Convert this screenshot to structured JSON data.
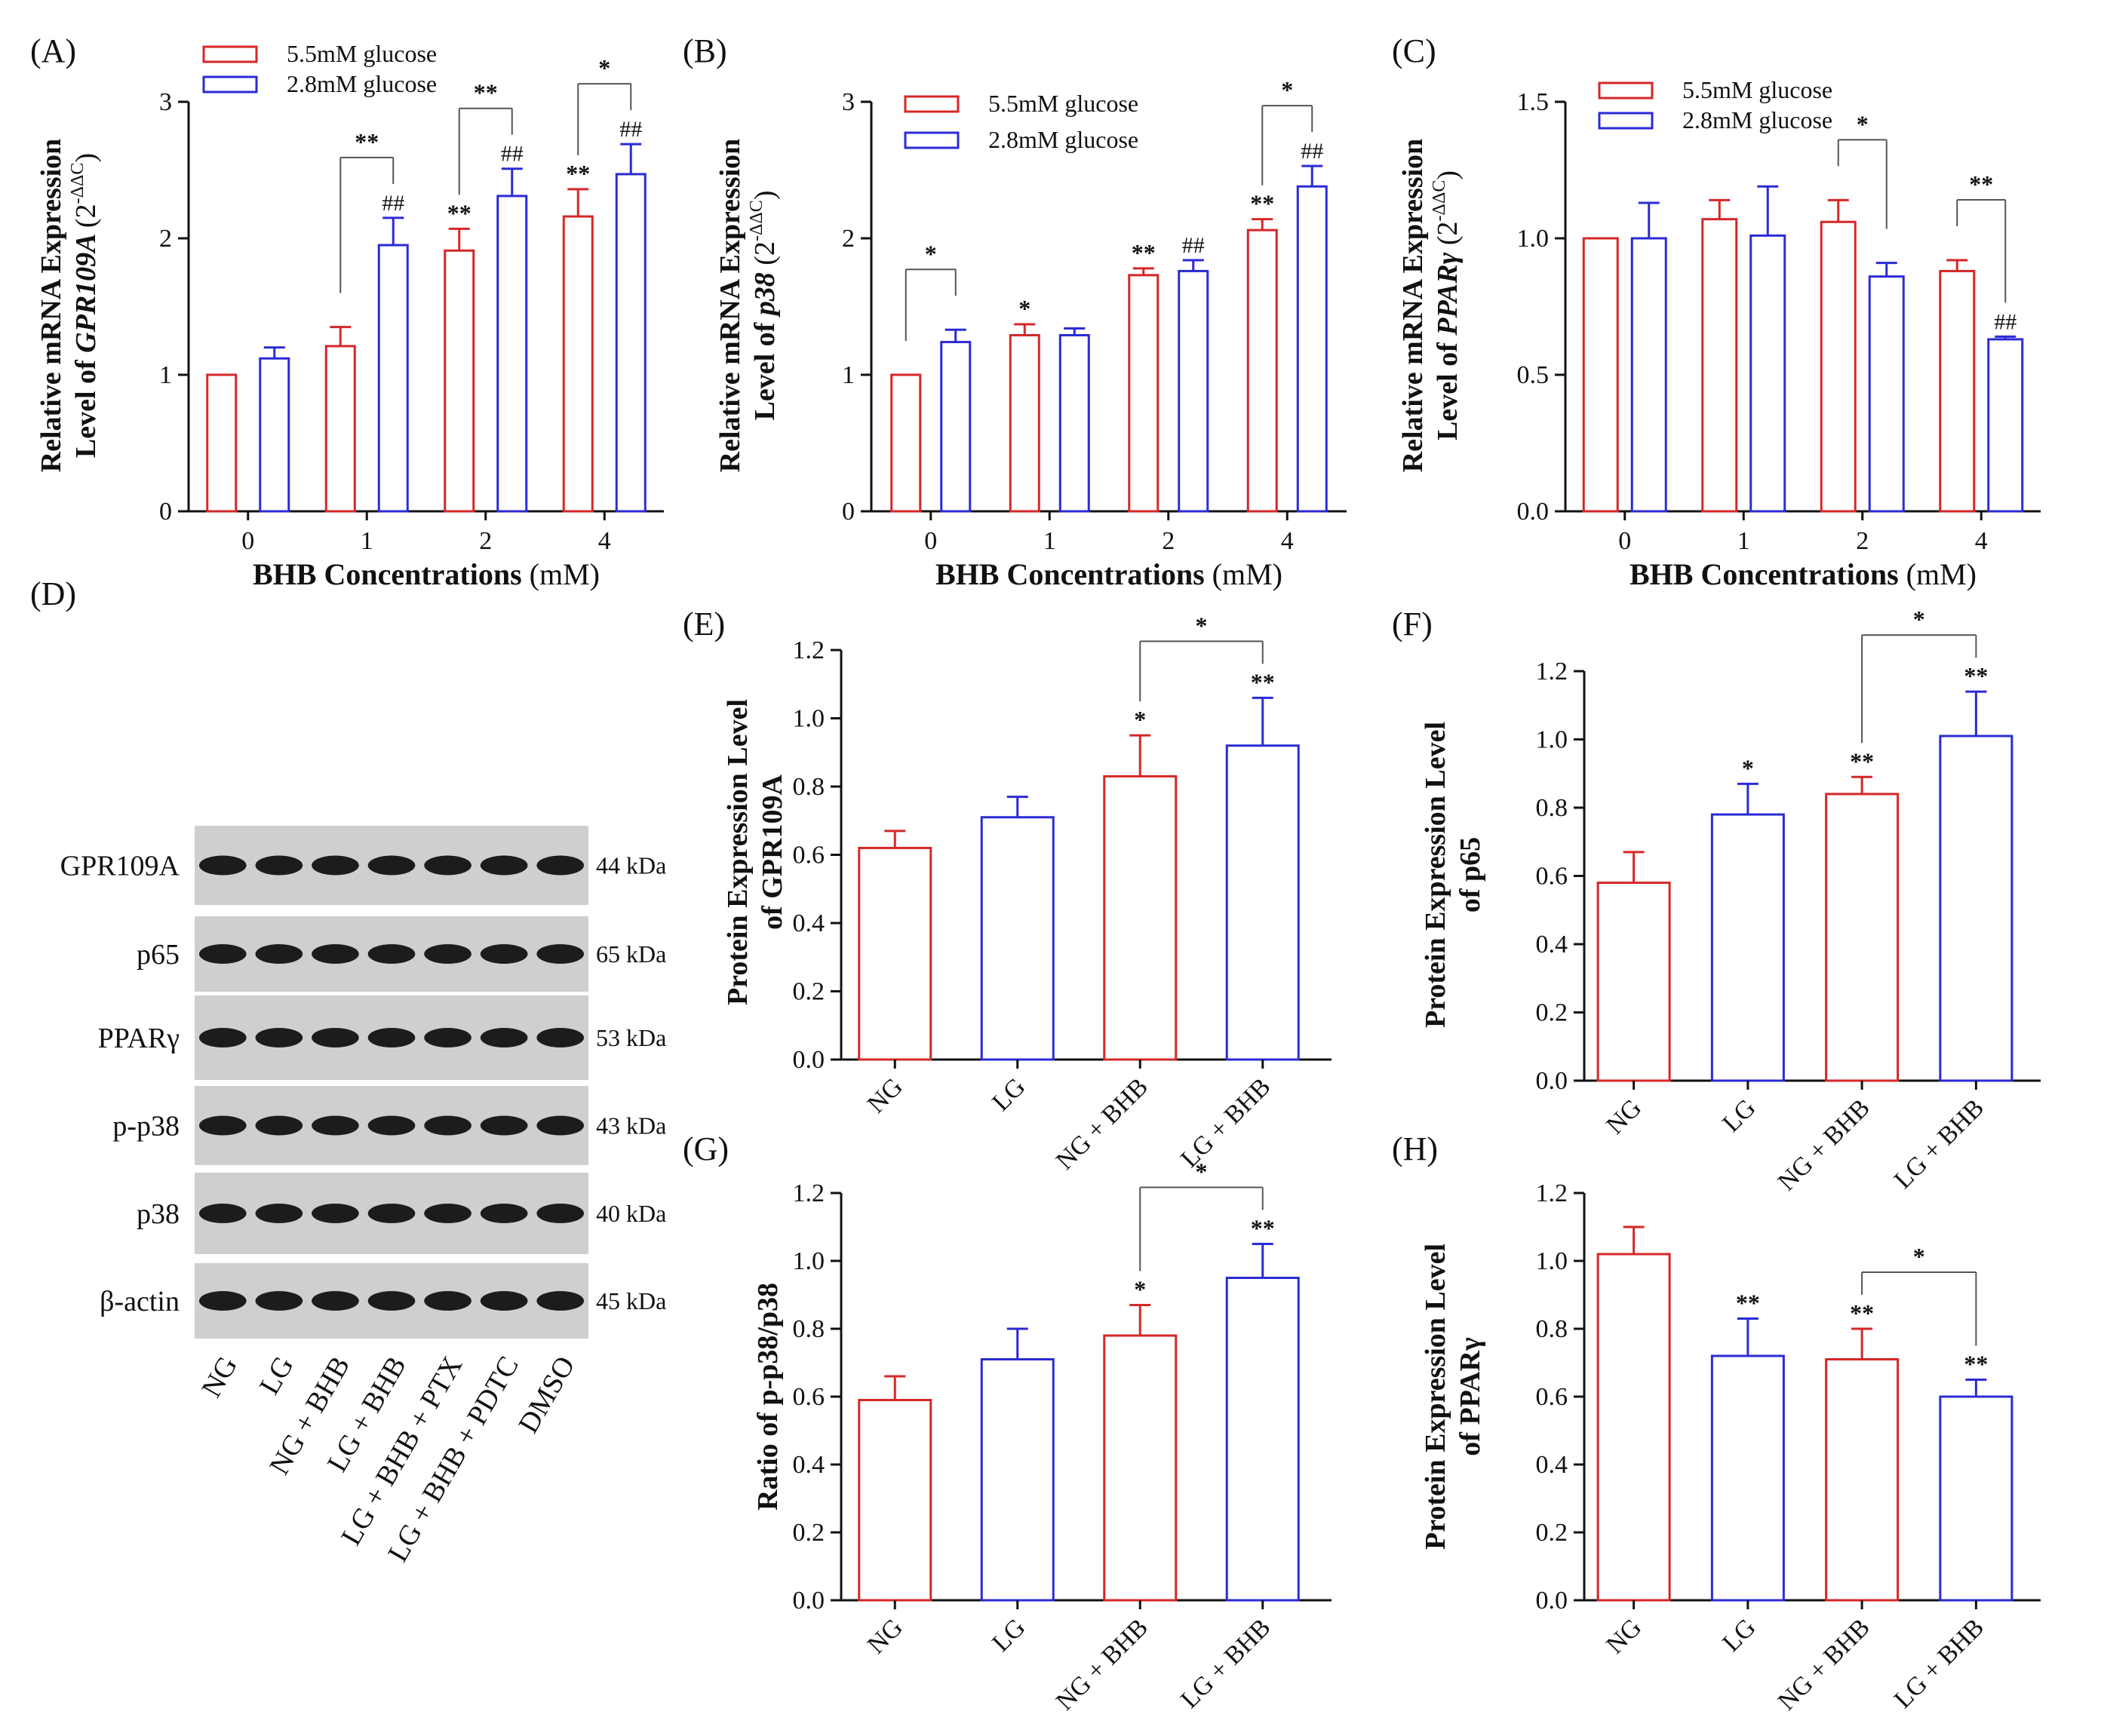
{
  "colors": {
    "red": "#d62728",
    "blue": "#2b2bd6",
    "axis": "#111111"
  },
  "chart_data": [
    {
      "id": "A",
      "panel_label": "(A)",
      "type": "bar",
      "ylabel_line1": "Relative mRNA Expression",
      "ylabel_line2_pre": "Level of ",
      "ylabel_gene": "GPR109A",
      "ylabel_unit_pre": "(2",
      "ylabel_unit_sup": "-ΔΔC",
      "ylabel_unit_post": ")",
      "xlabel_bold": "BHB Concentrations",
      "xlabel_rest": " (mM)",
      "categories": [
        "0",
        "1",
        "2",
        "4"
      ],
      "ylim": [
        0,
        3
      ],
      "yticks": [
        "0",
        "1",
        "2",
        "3"
      ],
      "legend": "top-left",
      "series": [
        {
          "name": "5.5mM glucose",
          "color_key": "red",
          "values": [
            1.0,
            1.21,
            1.91,
            2.16
          ],
          "err": [
            0,
            0.14,
            0.16,
            0.2
          ],
          "marks": [
            "",
            "",
            "**",
            "**"
          ]
        },
        {
          "name": "2.8mM glucose",
          "color_key": "blue",
          "values": [
            1.12,
            1.95,
            2.31,
            2.47
          ],
          "err": [
            0.08,
            0.2,
            0.2,
            0.22
          ],
          "marks": [
            "",
            "##",
            "##",
            "##"
          ]
        }
      ],
      "brackets": [
        {
          "cat": 1,
          "label": "**"
        },
        {
          "cat": 2,
          "label": "**"
        },
        {
          "cat": 3,
          "label": "*"
        }
      ]
    },
    {
      "id": "B",
      "panel_label": "(B)",
      "type": "bar",
      "ylabel_line1": "Relative mRNA Expression",
      "ylabel_line2_pre": "Level of ",
      "ylabel_gene": "p38",
      "ylabel_unit_pre": "(2",
      "ylabel_unit_sup": "-ΔΔC",
      "ylabel_unit_post": ")",
      "xlabel_bold": "BHB Concentrations",
      "xlabel_rest": " (mM)",
      "categories": [
        "0",
        "1",
        "2",
        "4"
      ],
      "ylim": [
        0,
        3
      ],
      "yticks": [
        "0",
        "1",
        "2",
        "3"
      ],
      "legend": "top-center",
      "series": [
        {
          "name": "5.5mM glucose",
          "color_key": "red",
          "values": [
            1.0,
            1.29,
            1.73,
            2.06
          ],
          "err": [
            0,
            0.08,
            0.05,
            0.08
          ],
          "marks": [
            "",
            "*",
            "**",
            "**"
          ]
        },
        {
          "name": "2.8mM glucose",
          "color_key": "blue",
          "values": [
            1.24,
            1.29,
            1.76,
            2.38
          ],
          "err": [
            0.09,
            0.05,
            0.08,
            0.15
          ],
          "marks": [
            "",
            "",
            "##",
            "##"
          ]
        }
      ],
      "brackets": [
        {
          "cat": 0,
          "label": "*"
        },
        {
          "cat": 3,
          "label": "*"
        }
      ]
    },
    {
      "id": "C",
      "panel_label": "(C)",
      "type": "bar",
      "ylabel_line1": "Relative mRNA Expression",
      "ylabel_line2_pre": "Level of ",
      "ylabel_gene": "PPARγ",
      "ylabel_unit_pre": "(2",
      "ylabel_unit_sup": "-ΔΔC",
      "ylabel_unit_post": ")",
      "xlabel_bold": "BHB Concentrations",
      "xlabel_rest": " (mM)",
      "categories": [
        "0",
        "1",
        "2",
        "4"
      ],
      "ylim": [
        0,
        1.5
      ],
      "yticks": [
        "0.0",
        "0.5",
        "1.0",
        "1.5"
      ],
      "legend": "top-center",
      "series": [
        {
          "name": "5.5mM glucose",
          "color_key": "red",
          "values": [
            1.0,
            1.07,
            1.06,
            0.88
          ],
          "err": [
            0,
            0.07,
            0.08,
            0.04
          ],
          "marks": [
            "",
            "",
            "",
            ""
          ]
        },
        {
          "name": "2.8mM glucose",
          "color_key": "blue",
          "values": [
            1.0,
            1.01,
            0.86,
            0.63
          ],
          "err": [
            0.13,
            0.18,
            0.05,
            0.01
          ],
          "marks": [
            "",
            "",
            "",
            "##"
          ]
        }
      ],
      "brackets": [
        {
          "cat": 2,
          "label": "*"
        },
        {
          "cat": 3,
          "label": "**"
        }
      ]
    },
    {
      "id": "E",
      "panel_label": "(E)",
      "type": "bar",
      "ylabel_line1": "Protein Expression Level",
      "ylabel_line2": "of GPR109A",
      "categories": [
        "NG",
        "LG",
        "NG + BHB",
        "LG + BHB"
      ],
      "ylim": [
        0,
        1.2
      ],
      "yticks": [
        "0.0",
        "0.2",
        "0.4",
        "0.6",
        "0.8",
        "1.0",
        "1.2"
      ],
      "values": [
        0.62,
        0.71,
        0.83,
        0.92
      ],
      "err": [
        0.05,
        0.06,
        0.12,
        0.14
      ],
      "bar_colors": [
        "red",
        "blue",
        "red",
        "blue"
      ],
      "marks": [
        "",
        "",
        "*",
        "**"
      ],
      "bracket": {
        "from": 2,
        "to": 3,
        "label": "*"
      }
    },
    {
      "id": "F",
      "panel_label": "(F)",
      "type": "bar",
      "ylabel_line1": "Protein Expression Level",
      "ylabel_line2": "of p65",
      "categories": [
        "NG",
        "LG",
        "NG + BHB",
        "LG + BHB"
      ],
      "ylim": [
        0,
        1.2
      ],
      "yticks": [
        "0.0",
        "0.2",
        "0.4",
        "0.6",
        "0.8",
        "1.0",
        "1.2"
      ],
      "values": [
        0.58,
        0.78,
        0.84,
        1.01
      ],
      "err": [
        0.09,
        0.09,
        0.05,
        0.13
      ],
      "bar_colors": [
        "red",
        "blue",
        "red",
        "blue"
      ],
      "marks": [
        "",
        "*",
        "**",
        "**"
      ],
      "bracket": {
        "from": 2,
        "to": 3,
        "label": "*"
      }
    },
    {
      "id": "G",
      "panel_label": "(G)",
      "type": "bar",
      "ylabel_line1": "Ratio of p-p38/p38",
      "ylabel_line2": "",
      "categories": [
        "NG",
        "LG",
        "NG + BHB",
        "LG + BHB"
      ],
      "ylim": [
        0,
        1.2
      ],
      "yticks": [
        "0.0",
        "0.2",
        "0.4",
        "0.6",
        "0.8",
        "1.0",
        "1.2"
      ],
      "values": [
        0.59,
        0.71,
        0.78,
        0.95
      ],
      "err": [
        0.07,
        0.09,
        0.09,
        0.1
      ],
      "bar_colors": [
        "red",
        "blue",
        "red",
        "blue"
      ],
      "marks": [
        "",
        "",
        "*",
        "**"
      ],
      "bracket": {
        "from": 2,
        "to": 3,
        "label": "*"
      }
    },
    {
      "id": "H",
      "panel_label": "(H)",
      "type": "bar",
      "ylabel_line1": "Protein Expression Level",
      "ylabel_line2": "of PPARγ",
      "categories": [
        "NG",
        "LG",
        "NG + BHB",
        "LG + BHB"
      ],
      "ylim": [
        0,
        1.2
      ],
      "yticks": [
        "0.0",
        "0.2",
        "0.4",
        "0.6",
        "0.8",
        "1.0",
        "1.2"
      ],
      "values": [
        1.02,
        0.72,
        0.71,
        0.6
      ],
      "err": [
        0.08,
        0.11,
        0.09,
        0.05
      ],
      "bar_colors": [
        "red",
        "blue",
        "red",
        "blue"
      ],
      "marks": [
        "",
        "**",
        "**",
        "**"
      ],
      "bracket": {
        "from": 2,
        "to": 3,
        "label": "*"
      }
    }
  ],
  "blot": {
    "panel_label": "(D)",
    "rows": [
      {
        "protein": "GPR109A",
        "kda": "44 kDa"
      },
      {
        "protein": "p65",
        "kda": "65 kDa"
      },
      {
        "protein": "PPARγ",
        "kda": "53 kDa"
      },
      {
        "protein": "p-p38",
        "kda": "43 kDa"
      },
      {
        "protein": "p38",
        "kda": "40 kDa"
      },
      {
        "protein": "β-actin",
        "kda": "45 kDa"
      }
    ],
    "lanes": [
      "NG",
      "LG",
      "NG + BHB",
      "LG + BHB",
      "LG + BHB + PTX",
      "LG + BHB + PDTC",
      "DMSO"
    ]
  }
}
